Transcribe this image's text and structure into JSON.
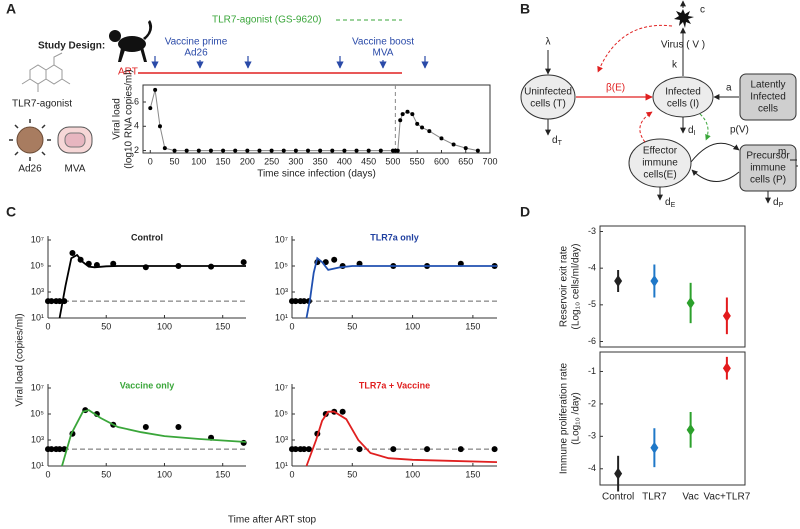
{
  "figure": {
    "panel_labels": [
      "A",
      "B",
      "C",
      "D"
    ],
    "study_design": "Study Design:",
    "icons": {
      "tlr7": "TLR7-agonist",
      "ad26": "Ad26",
      "mva": "MVA"
    },
    "timeline": {
      "tlr7": "TLR7-agonist (GS-9620)",
      "prime": [
        "Vaccine prime",
        "Ad26"
      ],
      "boost": [
        "Vaccine boost",
        "MVA"
      ],
      "art": "ART"
    },
    "diagram": {
      "uninfected": [
        "Uninfected",
        "cells (T)"
      ],
      "infected": [
        "Infected",
        "cells (I)"
      ],
      "virus": "Virus ( V )",
      "latent": [
        "Latently",
        "Infected",
        "cells"
      ],
      "effector": [
        "Effector",
        "immune",
        "cells(E)"
      ],
      "precursor": [
        "Precursor",
        "immune",
        "cells (P)"
      ],
      "lambda": "λ",
      "beta": "β(E)",
      "k": "k",
      "c": "c",
      "a": "a",
      "pV": "p(V)",
      "m": "m",
      "dT": {
        "base": "d",
        "sub": "T"
      },
      "dI": {
        "base": "d",
        "sub": "I"
      },
      "dE": {
        "base": "d",
        "sub": "E"
      },
      "dP": {
        "base": "d",
        "sub": "P"
      }
    },
    "panel_c": {
      "y_label": "Viral load (copies/ml)",
      "x_label": "Time after ART stop"
    }
  },
  "chart_data": [
    {
      "type": "line",
      "xlabel": "Time since infection (days)",
      "ylabel_lines": [
        "Viral load",
        "(log10 RNA copies/ml)"
      ],
      "xlim": [
        -15,
        700
      ],
      "ylim": [
        1.8,
        7.4
      ],
      "xticks": [
        0,
        50,
        100,
        150,
        200,
        250,
        300,
        350,
        400,
        450,
        500,
        550,
        600,
        650,
        700
      ],
      "yticks": [
        2,
        4,
        6
      ],
      "frame": true,
      "vline": 505,
      "series": [
        {
          "color": "#888888",
          "marker_color": "#000000",
          "style": "line+markers",
          "x": [
            0,
            10,
            20,
            30,
            50,
            75,
            100,
            125,
            150,
            175,
            200,
            225,
            250,
            275,
            300,
            325,
            350,
            375,
            400,
            425,
            450,
            475,
            500,
            505,
            510,
            515,
            520,
            530,
            540,
            550,
            560,
            575,
            600,
            625,
            650,
            675
          ],
          "values": [
            5.5,
            7,
            4,
            2.2,
            2,
            2,
            2,
            2,
            2,
            2,
            2,
            2,
            2,
            2,
            2,
            2,
            2,
            2,
            2,
            2,
            2,
            2,
            2,
            2,
            2,
            4.5,
            5,
            5.2,
            5,
            4.2,
            3.9,
            3.6,
            3,
            2.5,
            2.2,
            2
          ]
        }
      ]
    },
    {
      "type": "line",
      "title": "Control",
      "title_color": "#222222",
      "log_y": true,
      "frame": false,
      "xlim": [
        0,
        170
      ],
      "ylim": [
        10,
        10000000
      ],
      "xticks": [
        0,
        50,
        100,
        150
      ],
      "yticks": [
        {
          "value": 10,
          "label": "10¹"
        },
        {
          "value": 1000,
          "label": "10³"
        },
        {
          "value": 100000,
          "label": "10⁵"
        },
        {
          "value": 10000000,
          "label": "10⁷"
        }
      ],
      "hline": 200,
      "series": [
        {
          "color": "#000000",
          "style": "markers",
          "x": [
            0,
            3,
            7,
            10,
            14,
            21,
            28,
            35,
            42,
            56,
            84,
            112,
            140,
            168
          ],
          "values": [
            200,
            200,
            200,
            200,
            200,
            1000000,
            300000,
            150000,
            120000,
            150000,
            80000,
            100000,
            90000,
            200000
          ]
        },
        {
          "color": "#000000",
          "style": "line",
          "x": [
            10,
            15,
            20,
            25,
            30,
            35,
            40,
            50,
            60,
            80,
            100,
            130,
            170
          ],
          "values": [
            10,
            3000,
            400000,
            700000,
            200000,
            90000,
            80000,
            95000,
            100000,
            100000,
            100000,
            100000,
            100000
          ]
        }
      ]
    },
    {
      "type": "line",
      "title": "TLR7a only",
      "title_color": "#2040a0",
      "log_y": true,
      "frame": false,
      "xlim": [
        0,
        170
      ],
      "ylim": [
        10,
        10000000
      ],
      "xticks": [
        0,
        50,
        100,
        150
      ],
      "yticks": [
        {
          "value": 10,
          "label": "10¹"
        },
        {
          "value": 1000,
          "label": "10³"
        },
        {
          "value": 100000,
          "label": "10⁵"
        },
        {
          "value": 10000000,
          "label": "10⁷"
        }
      ],
      "hline": 200,
      "series": [
        {
          "color": "#000000",
          "style": "markers",
          "x": [
            0,
            3,
            7,
            10,
            14,
            21,
            28,
            35,
            42,
            56,
            84,
            112,
            140,
            168
          ],
          "values": [
            200,
            200,
            200,
            200,
            200,
            200000,
            200000,
            300000,
            100000,
            150000,
            100000,
            100000,
            150000,
            100000
          ]
        },
        {
          "color": "#2050b0",
          "style": "line",
          "x": [
            12,
            15,
            18,
            21,
            25,
            30,
            40,
            50,
            70,
            100,
            170
          ],
          "values": [
            10,
            300,
            30000,
            400000,
            200000,
            50000,
            80000,
            100000,
            100000,
            100000,
            100000
          ]
        }
      ]
    },
    {
      "type": "line",
      "title": "Vaccine only",
      "title_color": "#3aa63a",
      "log_y": true,
      "frame": false,
      "xlim": [
        0,
        170
      ],
      "ylim": [
        10,
        10000000
      ],
      "xticks": [
        0,
        50,
        100,
        150
      ],
      "yticks": [
        {
          "value": 10,
          "label": "10¹"
        },
        {
          "value": 1000,
          "label": "10³"
        },
        {
          "value": 100000,
          "label": "10⁵"
        },
        {
          "value": 10000000,
          "label": "10⁷"
        }
      ],
      "hline": 200,
      "series": [
        {
          "color": "#000000",
          "style": "markers",
          "x": [
            0,
            3,
            7,
            10,
            14,
            21,
            32,
            42,
            56,
            84,
            112,
            140,
            168
          ],
          "values": [
            200,
            200,
            200,
            200,
            200,
            3000,
            200000,
            100000,
            15000,
            10000,
            10000,
            1500,
            600
          ]
        },
        {
          "color": "#3aa63a",
          "style": "line",
          "x": [
            12,
            20,
            30,
            35,
            45,
            60,
            80,
            100,
            130,
            170
          ],
          "values": [
            10,
            3000,
            150000,
            200000,
            50000,
            10000,
            4000,
            2000,
            1200,
            700
          ]
        }
      ]
    },
    {
      "type": "line",
      "title": "TLR7a + Vaccine",
      "title_color": "#e02020",
      "log_y": true,
      "frame": false,
      "xlim": [
        0,
        170
      ],
      "ylim": [
        10,
        10000000
      ],
      "xticks": [
        0,
        50,
        100,
        150
      ],
      "yticks": [
        {
          "value": 10,
          "label": "10¹"
        },
        {
          "value": 1000,
          "label": "10³"
        },
        {
          "value": 100000,
          "label": "10⁵"
        },
        {
          "value": 10000000,
          "label": "10⁷"
        }
      ],
      "hline": 200,
      "series": [
        {
          "color": "#000000",
          "style": "markers",
          "x": [
            0,
            3,
            7,
            10,
            14,
            21,
            28,
            35,
            42,
            56,
            84,
            112,
            140,
            168
          ],
          "values": [
            200,
            200,
            200,
            200,
            200,
            3000,
            100000,
            150000,
            150000,
            200,
            200,
            200,
            200,
            200
          ]
        },
        {
          "color": "#e02020",
          "style": "line",
          "x": [
            12,
            20,
            25,
            30,
            35,
            45,
            55,
            65,
            80,
            100,
            130,
            170
          ],
          "values": [
            10,
            1000,
            30000,
            150000,
            150000,
            40000,
            1000,
            100,
            40,
            30,
            25,
            20
          ]
        }
      ]
    },
    {
      "type": "errorbar",
      "ylabel_lines": [
        "Reservoir exit rate",
        "(Log₁₀ cells/ml/day)"
      ],
      "frame": true,
      "categories": [
        null,
        null,
        null,
        null
      ],
      "values": [
        -4.35,
        -4.35,
        -4.95,
        -5.3
      ],
      "errors": [
        0.3,
        0.45,
        0.55,
        0.5
      ],
      "colors": [
        "#222222",
        "#1f78c8",
        "#2ca02c",
        "#e31a1c"
      ],
      "ylim": [
        -6.15,
        -2.85
      ],
      "yticks": [
        -3,
        -4,
        -5,
        -6
      ]
    },
    {
      "type": "errorbar",
      "ylabel_lines": [
        "Immune proliferation rate",
        "(Log₁₀ /day)"
      ],
      "frame": true,
      "categories": [
        "Control",
        "TLR7",
        "Vac",
        "Vac+TLR7"
      ],
      "values": [
        -4.15,
        -3.35,
        -2.8,
        -0.9
      ],
      "errors": [
        0.55,
        0.6,
        0.55,
        0.35
      ],
      "colors": [
        "#222222",
        "#1f78c8",
        "#2ca02c",
        "#e31a1c"
      ],
      "ylim": [
        -4.5,
        -0.4
      ],
      "yticks": [
        -1,
        -2,
        -3,
        -4
      ]
    }
  ]
}
